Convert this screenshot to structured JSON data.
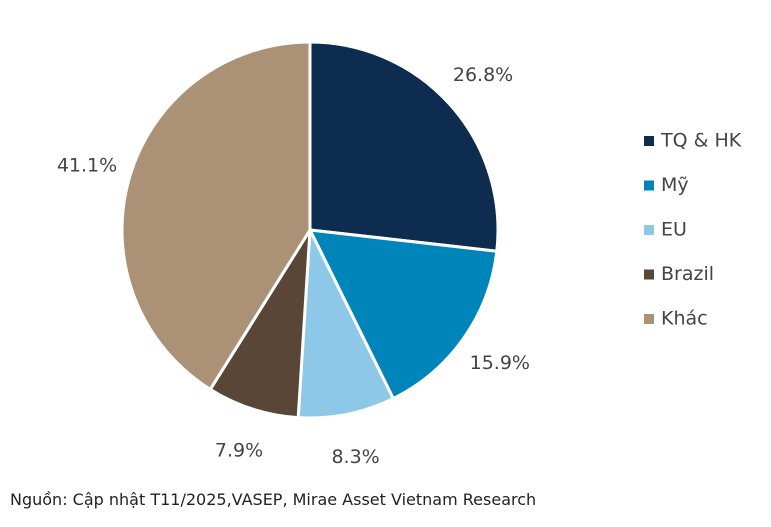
{
  "chart_data": {
    "type": "pie",
    "title": "",
    "slices": [
      {
        "name": "TQ & HK",
        "value": 26.8,
        "label": "26.8%",
        "color": "#0e2b50"
      },
      {
        "name": "Mỹ",
        "value": 15.9,
        "label": "15.9%",
        "color": "#0085ba"
      },
      {
        "name": "EU",
        "value": 8.3,
        "label": "8.3%",
        "color": "#8ec8e8"
      },
      {
        "name": "Brazil",
        "value": 7.9,
        "label": "7.9%",
        "color": "#5a4636"
      },
      {
        "name": "Khác",
        "value": 41.1,
        "label": "41.1%",
        "color": "#ab9277"
      }
    ],
    "legend_position": "right"
  },
  "source_note": "Nguồn: Cập nhật T11/2025,VASEP, Mirae Asset Vietnam Research"
}
